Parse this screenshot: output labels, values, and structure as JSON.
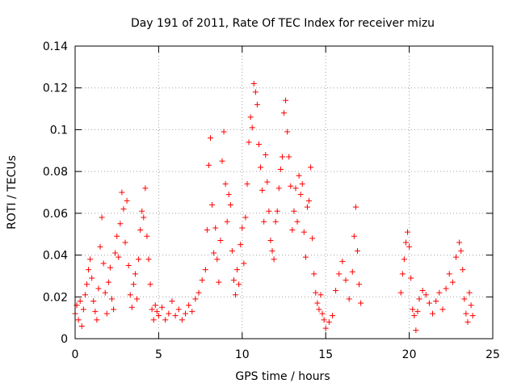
{
  "chart_data": {
    "type": "scatter",
    "title": "Day 191 of 2011, Rate Of TEC Index for receiver mizu",
    "xlabel": "GPS time / hours",
    "ylabel": "ROTI / TECUs",
    "xlim": [
      0,
      25
    ],
    "ylim": [
      0,
      0.14
    ],
    "xticks": [
      0,
      5,
      10,
      15,
      20,
      25
    ],
    "xtick_labels": [
      "0",
      "5",
      "10",
      "15",
      "20",
      "25"
    ],
    "yticks": [
      0,
      0.02,
      0.04,
      0.06,
      0.08,
      0.1,
      0.12,
      0.14
    ],
    "ytick_labels": [
      "0",
      "0.02",
      "0.04",
      "0.06",
      "0.08",
      "0.1",
      "0.12",
      "0.14"
    ],
    "grid": true,
    "marker": "+",
    "series_color": "#ff0000",
    "series": [
      {
        "name": "ROTI",
        "points": [
          [
            0.0,
            0.012
          ],
          [
            0.1,
            0.016
          ],
          [
            0.2,
            0.009
          ],
          [
            0.3,
            0.018
          ],
          [
            0.4,
            0.006
          ],
          [
            0.5,
            0.014
          ],
          [
            0.6,
            0.021
          ],
          [
            0.7,
            0.026
          ],
          [
            0.8,
            0.033
          ],
          [
            0.9,
            0.038
          ],
          [
            1.0,
            0.029
          ],
          [
            1.1,
            0.018
          ],
          [
            1.2,
            0.013
          ],
          [
            1.3,
            0.009
          ],
          [
            1.4,
            0.024
          ],
          [
            1.5,
            0.044
          ],
          [
            1.6,
            0.058
          ],
          [
            1.7,
            0.036
          ],
          [
            1.8,
            0.022
          ],
          [
            1.9,
            0.012
          ],
          [
            2.0,
            0.027
          ],
          [
            2.1,
            0.034
          ],
          [
            2.2,
            0.019
          ],
          [
            2.3,
            0.014
          ],
          [
            2.4,
            0.041
          ],
          [
            2.5,
            0.049
          ],
          [
            2.6,
            0.039
          ],
          [
            2.7,
            0.055
          ],
          [
            2.8,
            0.07
          ],
          [
            2.9,
            0.062
          ],
          [
            3.0,
            0.046
          ],
          [
            3.1,
            0.066
          ],
          [
            3.2,
            0.035
          ],
          [
            3.3,
            0.021
          ],
          [
            3.4,
            0.015
          ],
          [
            3.5,
            0.026
          ],
          [
            3.6,
            0.031
          ],
          [
            3.7,
            0.019
          ],
          [
            3.8,
            0.038
          ],
          [
            3.9,
            0.052
          ],
          [
            4.0,
            0.061
          ],
          [
            4.1,
            0.058
          ],
          [
            4.2,
            0.072
          ],
          [
            4.3,
            0.049
          ],
          [
            4.4,
            0.038
          ],
          [
            4.5,
            0.026
          ],
          [
            4.6,
            0.014
          ],
          [
            4.7,
            0.009
          ],
          [
            4.8,
            0.016
          ],
          [
            4.9,
            0.013
          ],
          [
            5.0,
            0.011
          ],
          [
            5.2,
            0.015
          ],
          [
            5.4,
            0.009
          ],
          [
            5.6,
            0.012
          ],
          [
            5.8,
            0.018
          ],
          [
            6.0,
            0.011
          ],
          [
            6.2,
            0.014
          ],
          [
            6.4,
            0.009
          ],
          [
            6.6,
            0.012
          ],
          [
            6.8,
            0.016
          ],
          [
            7.0,
            0.013
          ],
          [
            7.2,
            0.019
          ],
          [
            7.4,
            0.022
          ],
          [
            7.6,
            0.028
          ],
          [
            7.8,
            0.033
          ],
          [
            7.9,
            0.052
          ],
          [
            8.0,
            0.083
          ],
          [
            8.1,
            0.096
          ],
          [
            8.2,
            0.064
          ],
          [
            8.3,
            0.041
          ],
          [
            8.4,
            0.053
          ],
          [
            8.5,
            0.038
          ],
          [
            8.6,
            0.027
          ],
          [
            8.7,
            0.047
          ],
          [
            8.8,
            0.085
          ],
          [
            8.9,
            0.099
          ],
          [
            9.0,
            0.074
          ],
          [
            9.1,
            0.056
          ],
          [
            9.2,
            0.069
          ],
          [
            9.3,
            0.064
          ],
          [
            9.4,
            0.042
          ],
          [
            9.5,
            0.028
          ],
          [
            9.6,
            0.021
          ],
          [
            9.7,
            0.033
          ],
          [
            9.8,
            0.026
          ],
          [
            9.9,
            0.045
          ],
          [
            10.0,
            0.053
          ],
          [
            10.1,
            0.036
          ],
          [
            10.2,
            0.058
          ],
          [
            10.3,
            0.074
          ],
          [
            10.4,
            0.094
          ],
          [
            10.5,
            0.106
          ],
          [
            10.6,
            0.101
          ],
          [
            10.7,
            0.122
          ],
          [
            10.8,
            0.118
          ],
          [
            10.9,
            0.112
          ],
          [
            11.0,
            0.093
          ],
          [
            11.1,
            0.082
          ],
          [
            11.2,
            0.071
          ],
          [
            11.3,
            0.056
          ],
          [
            11.4,
            0.088
          ],
          [
            11.5,
            0.075
          ],
          [
            11.6,
            0.061
          ],
          [
            11.7,
            0.047
          ],
          [
            11.8,
            0.042
          ],
          [
            11.9,
            0.038
          ],
          [
            12.0,
            0.056
          ],
          [
            12.1,
            0.061
          ],
          [
            12.2,
            0.072
          ],
          [
            12.3,
            0.081
          ],
          [
            12.4,
            0.087
          ],
          [
            12.5,
            0.108
          ],
          [
            12.6,
            0.114
          ],
          [
            12.7,
            0.099
          ],
          [
            12.8,
            0.087
          ],
          [
            12.9,
            0.073
          ],
          [
            13.0,
            0.052
          ],
          [
            13.1,
            0.061
          ],
          [
            13.2,
            0.072
          ],
          [
            13.3,
            0.056
          ],
          [
            13.4,
            0.078
          ],
          [
            13.5,
            0.069
          ],
          [
            13.6,
            0.074
          ],
          [
            13.7,
            0.051
          ],
          [
            13.8,
            0.039
          ],
          [
            13.9,
            0.063
          ],
          [
            14.0,
            0.066
          ],
          [
            14.1,
            0.082
          ],
          [
            14.2,
            0.048
          ],
          [
            14.3,
            0.031
          ],
          [
            14.4,
            0.022
          ],
          [
            14.5,
            0.017
          ],
          [
            14.6,
            0.014
          ],
          [
            14.7,
            0.021
          ],
          [
            14.8,
            0.012
          ],
          [
            14.9,
            0.009
          ],
          [
            15.0,
            0.005
          ],
          [
            15.2,
            0.008
          ],
          [
            15.4,
            0.011
          ],
          [
            15.6,
            0.023
          ],
          [
            15.8,
            0.031
          ],
          [
            16.0,
            0.037
          ],
          [
            16.2,
            0.028
          ],
          [
            16.4,
            0.019
          ],
          [
            16.6,
            0.032
          ],
          [
            16.7,
            0.049
          ],
          [
            16.8,
            0.063
          ],
          [
            16.9,
            0.042
          ],
          [
            17.0,
            0.026
          ],
          [
            17.1,
            0.017
          ],
          [
            19.5,
            0.022
          ],
          [
            19.6,
            0.031
          ],
          [
            19.7,
            0.038
          ],
          [
            19.8,
            0.046
          ],
          [
            19.9,
            0.051
          ],
          [
            20.0,
            0.044
          ],
          [
            20.1,
            0.029
          ],
          [
            20.2,
            0.014
          ],
          [
            20.3,
            0.011
          ],
          [
            20.4,
            0.004
          ],
          [
            20.5,
            0.013
          ],
          [
            20.6,
            0.019
          ],
          [
            20.8,
            0.023
          ],
          [
            21.0,
            0.021
          ],
          [
            21.2,
            0.017
          ],
          [
            21.4,
            0.012
          ],
          [
            21.6,
            0.018
          ],
          [
            21.8,
            0.022
          ],
          [
            22.0,
            0.014
          ],
          [
            22.2,
            0.024
          ],
          [
            22.4,
            0.031
          ],
          [
            22.6,
            0.027
          ],
          [
            22.8,
            0.039
          ],
          [
            23.0,
            0.046
          ],
          [
            23.1,
            0.042
          ],
          [
            23.2,
            0.033
          ],
          [
            23.3,
            0.019
          ],
          [
            23.4,
            0.012
          ],
          [
            23.5,
            0.008
          ],
          [
            23.6,
            0.022
          ],
          [
            23.7,
            0.016
          ],
          [
            23.8,
            0.011
          ]
        ]
      }
    ]
  }
}
